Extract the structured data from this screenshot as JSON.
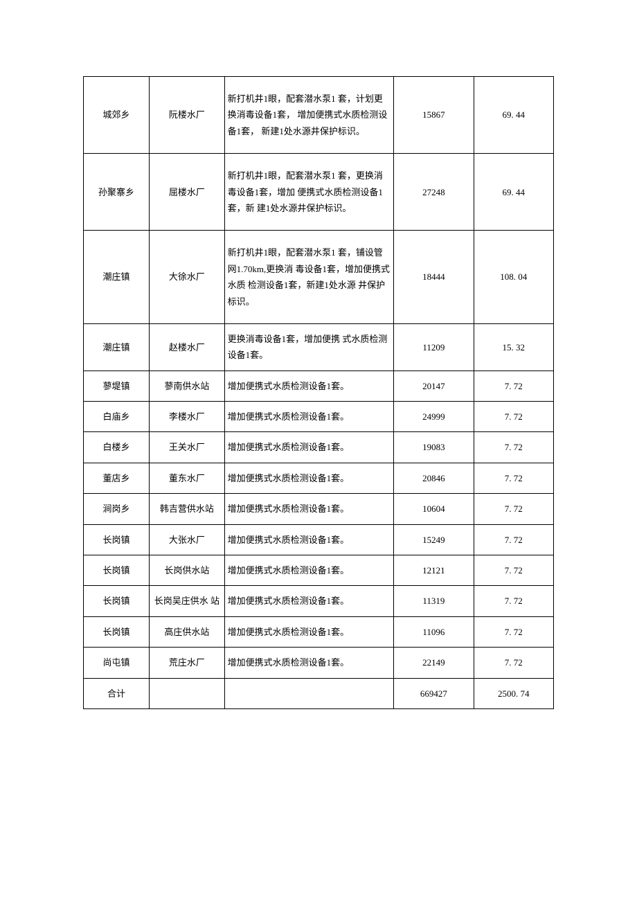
{
  "table": {
    "columns": [
      "township",
      "plant",
      "description",
      "value1",
      "value2"
    ],
    "column_widths": [
      "14%",
      "16%",
      "36%",
      "17%",
      "17%"
    ],
    "column_align": [
      "center",
      "center",
      "left",
      "center",
      "center"
    ],
    "border_color": "#000000",
    "background_color": "#ffffff",
    "text_color": "#000000",
    "font_family": "SimSun",
    "font_size": 13,
    "rows": [
      {
        "height": "tall",
        "cells": [
          "城郊乡",
          "阮楼水厂",
          "新打机井1眼，配套潜水泵1 套，计划更换消毒设备1套， 增加便携式水质检测设备1套， 新建1处水源井保护标识。",
          "15867",
          "69. 44"
        ]
      },
      {
        "height": "tall",
        "cells": [
          "孙聚寨乡",
          "屈楼水厂",
          "新打机井1眼，配套潜水泵1 套，更换消毒设备1套，增加 便携式水质检测设备1套，新 建1处水源井保护标识。",
          "27248",
          "69. 44"
        ]
      },
      {
        "height": "tall",
        "cells": [
          "潮庄镇",
          "大徐水厂",
          "新打机井1眼，配套潜水泵1 套，铺设管网1.70km,更换消 毒设备1套，增加便携式水质 检测设备1套，新建1处水源 井保护标识。",
          "18444",
          "108. 04"
        ]
      },
      {
        "height": "med",
        "cells": [
          "潮庄镇",
          "赵楼水厂",
          "更换消毒设备1套，增加便携 式水质检测设备1套。",
          "11209",
          "15. 32"
        ]
      },
      {
        "height": "med",
        "cells": [
          "蓼堤镇",
          "蓼南供水站",
          "增加便携式水质检测设备1套。",
          "20147",
          "7. 72"
        ]
      },
      {
        "height": "med",
        "cells": [
          "白庙乡",
          "李楼水厂",
          "增加便携式水质检测设备1套。",
          "24999",
          "7. 72"
        ]
      },
      {
        "height": "med",
        "cells": [
          "白楼乡",
          "王关水厂",
          "增加便携式水质检测设备1套。",
          "19083",
          "7. 72"
        ]
      },
      {
        "height": "med",
        "cells": [
          "董店乡",
          "董东水厂",
          "增加便携式水质检测设备1套。",
          "20846",
          "7. 72"
        ]
      },
      {
        "height": "med",
        "cells": [
          "涧岗乡",
          "韩吉营供水站",
          "增加便携式水质检测设备1套。",
          "10604",
          "7. 72"
        ]
      },
      {
        "height": "med",
        "cells": [
          "长岗镇",
          "大张水厂",
          "增加便携式水质检测设备1套。",
          "15249",
          "7. 72"
        ]
      },
      {
        "height": "med",
        "cells": [
          "长岗镇",
          "长岗供水站",
          "增加便携式水质检测设备1套。",
          "12121",
          "7. 72"
        ]
      },
      {
        "height": "med",
        "cells": [
          "长岗镇",
          "长岗吴庄供水 站",
          "增加便携式水质检测设备1套。",
          "11319",
          "7. 72"
        ]
      },
      {
        "height": "med",
        "cells": [
          "长岗镇",
          "高庄供水站",
          "增加便携式水质检测设备1套。",
          "11096",
          "7. 72"
        ]
      },
      {
        "height": "med",
        "cells": [
          "尚屯镇",
          "荒庄水厂",
          "增加便携式水质检测设备1套。",
          "22149",
          "7. 72"
        ]
      },
      {
        "height": "med",
        "cells": [
          "合计",
          "",
          "",
          "669427",
          "2500. 74"
        ]
      }
    ]
  }
}
